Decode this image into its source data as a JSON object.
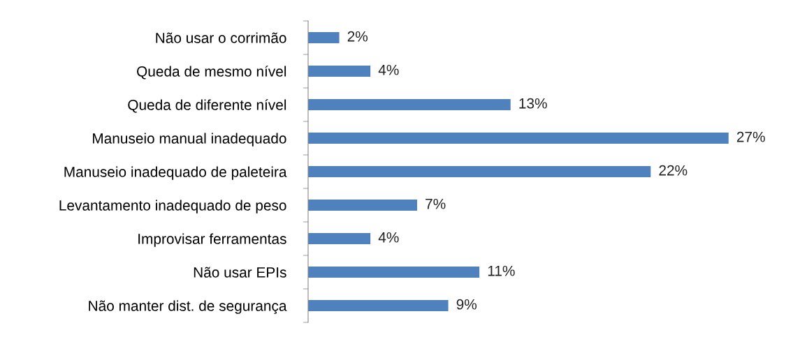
{
  "chart_data": {
    "type": "bar",
    "orientation": "horizontal",
    "categories": [
      "Não usar o corrimão",
      "Queda de mesmo nível",
      "Queda de diferente nível",
      "Manuseio manual inadequado",
      "Manuseio inadequado de paleteira",
      "Levantamento inadequado de peso",
      "Improvisar ferramentas",
      "Não usar EPIs",
      "Não manter dist. de segurança"
    ],
    "values": [
      2,
      4,
      13,
      27,
      22,
      7,
      4,
      11,
      9
    ],
    "value_labels": [
      "2%",
      "4%",
      "13%",
      "27%",
      "22%",
      "7%",
      "4%",
      "11%",
      "9%"
    ],
    "color": "#4f81bd",
    "grid": false,
    "legend": false
  }
}
